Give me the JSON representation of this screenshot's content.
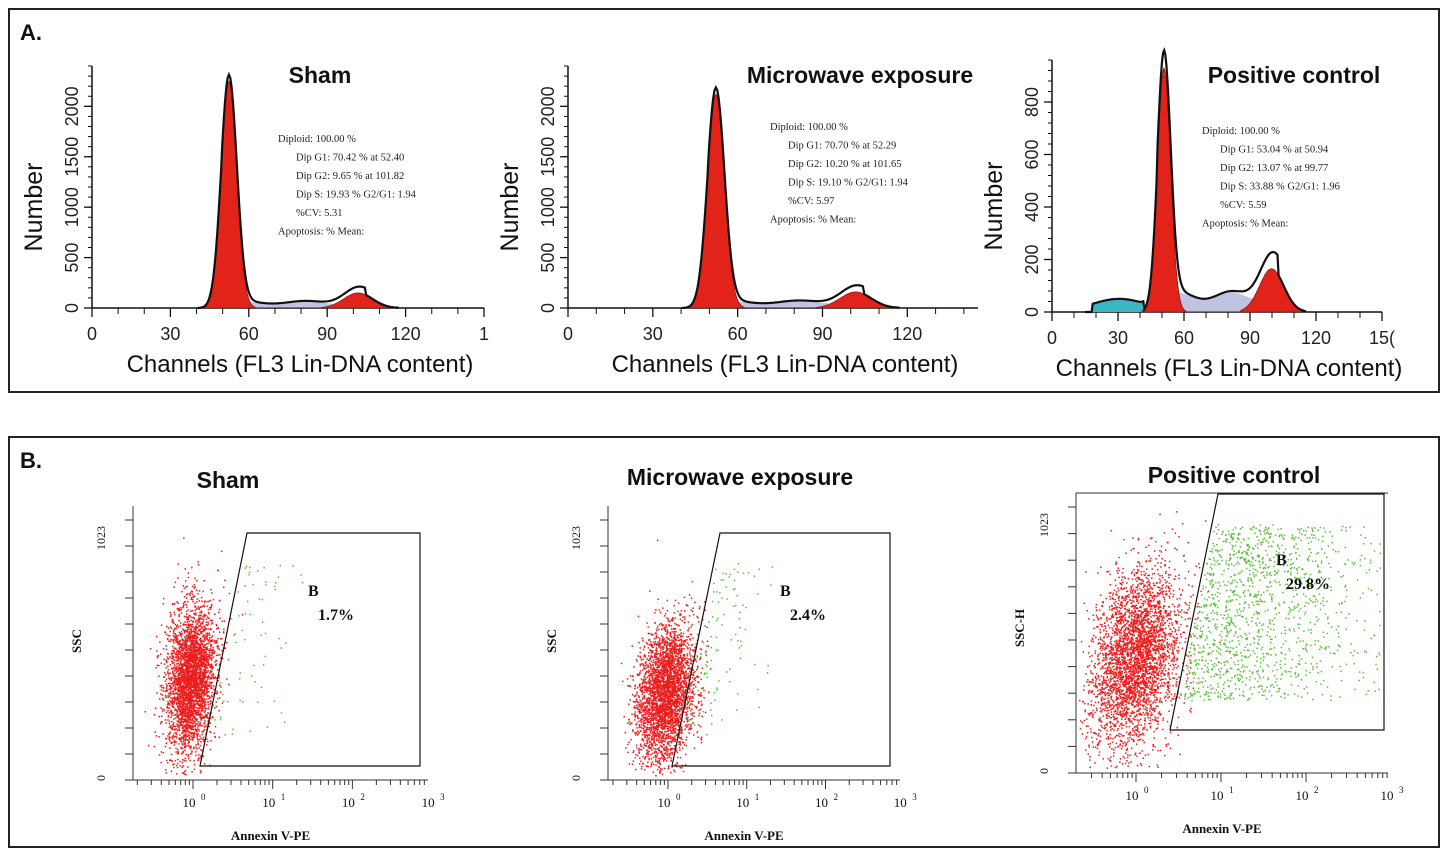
{
  "panel_a": {
    "label": "A.",
    "plots": [
      {
        "title": "Sham",
        "ylabel": "Number",
        "xlabel": "Channels (FL3 Lin-DNA content)",
        "yticks": [
          "0",
          "500",
          "1000",
          "1500",
          "2000"
        ],
        "xticks": [
          "0",
          "30",
          "60",
          "90",
          "120",
          "1"
        ],
        "stats": [
          "Diploid: 100.00 %",
          "Dip G1: 70.42 % at 52.40",
          "Dip G2: 9.65 % at 101.82",
          "Dip S: 19.93 %     G2/G1: 1.94",
          "%CV: 5.31",
          "Apoptosis:   %       Mean:"
        ]
      },
      {
        "title": "Microwave exposure",
        "ylabel": "Number",
        "xlabel": "Channels (FL3 Lin-DNA content)",
        "yticks": [
          "0",
          "500",
          "1000",
          "1500",
          "2000"
        ],
        "xticks": [
          "0",
          "30",
          "60",
          "90",
          "120"
        ],
        "stats": [
          "Diploid: 100.00 %",
          "Dip G1: 70.70 % at 52.29",
          "Dip G2: 10.20 % at 101.65",
          "Dip S: 19.10 %     G2/G1: 1.94",
          "%CV: 5.97",
          "Apoptosis:   %       Mean:"
        ]
      },
      {
        "title": "Positive control",
        "ylabel": "Number",
        "xlabel": "Channels (FL3 Lin-DNA content)",
        "yticks": [
          "0",
          "200",
          "400",
          "600",
          "800"
        ],
        "xticks": [
          "0",
          "30",
          "60",
          "90",
          "120",
          "15("
        ],
        "stats": [
          "Diploid: 100.00 %",
          "Dip G1: 53.04 % at 50.94",
          "Dip G2: 13.07 % at 99.77",
          "Dip S: 33.88 %     G2/G1: 1.96",
          "%CV: 5.59",
          "Apoptosis:   %       Mean:"
        ]
      }
    ]
  },
  "panel_b": {
    "label": "B.",
    "plots": [
      {
        "title": "Sham",
        "ylabel": "SSC",
        "xlabel": "Annexin V-PE",
        "ytop": "1023",
        "ybottom": "0",
        "gate_label": "B",
        "gate_pct": "1.7%"
      },
      {
        "title": "Microwave exposure",
        "ylabel": "SSC",
        "xlabel": "Annexin V-PE",
        "ytop": "1023",
        "ybottom": "0",
        "gate_label": "B",
        "gate_pct": "2.4%"
      },
      {
        "title": "Positive control",
        "ylabel": "SSC-H",
        "xlabel": "Annexin V-PE",
        "ytop": "1023",
        "ybottom": "0",
        "gate_label": "B",
        "gate_pct": "29.8%"
      }
    ]
  },
  "colors": {
    "g1_fill": "#e2231a",
    "g2_fill": "#e2231a",
    "s_phase": "#8f90c8",
    "apoptosis": "#3ab7c4",
    "outline": "#111111",
    "dot_red": "#ee1c1c",
    "dot_green": "#5cbf3a"
  },
  "chart_data": [
    {
      "type": "area",
      "title": "Sham",
      "xlabel": "Channels (FL3 Lin-DNA content)",
      "ylabel": "Number",
      "xlim": [
        0,
        150
      ],
      "ylim": [
        0,
        2400
      ],
      "peaks": {
        "g1_center": 52.4,
        "g1_height": 2250,
        "g2_center": 101.8,
        "g2_height": 150,
        "s_level": 80
      },
      "stats": {
        "diploid_pct": 100.0,
        "g1_pct": 70.42,
        "g1_at": 52.4,
        "g2_pct": 9.65,
        "g2_at": 101.82,
        "s_pct": 19.93,
        "g2_g1": 1.94,
        "cv": 5.31
      }
    },
    {
      "type": "area",
      "title": "Microwave exposure",
      "xlabel": "Channels (FL3 Lin-DNA content)",
      "ylabel": "Number",
      "xlim": [
        0,
        145
      ],
      "ylim": [
        0,
        2400
      ],
      "peaks": {
        "g1_center": 52.3,
        "g1_height": 2120,
        "g2_center": 101.7,
        "g2_height": 160,
        "s_level": 85
      },
      "stats": {
        "diploid_pct": 100.0,
        "g1_pct": 70.7,
        "g1_at": 52.29,
        "g2_pct": 10.2,
        "g2_at": 101.65,
        "s_pct": 19.1,
        "g2_g1": 1.94,
        "cv": 5.97
      }
    },
    {
      "type": "area",
      "title": "Positive control",
      "xlabel": "Channels (FL3 Lin-DNA content)",
      "ylabel": "Number",
      "xlim": [
        0,
        150
      ],
      "ylim": [
        0,
        960
      ],
      "peaks": {
        "g1_center": 50.9,
        "g1_height": 930,
        "g2_center": 99.8,
        "g2_height": 165,
        "s_level": 90
      },
      "stats": {
        "diploid_pct": 100.0,
        "g1_pct": 53.04,
        "g1_at": 50.94,
        "g2_pct": 13.07,
        "g2_at": 99.77,
        "s_pct": 33.88,
        "g2_g1": 1.96,
        "cv": 5.59
      }
    },
    {
      "type": "scatter",
      "title": "Sham",
      "xlabel": "Annexin V-PE",
      "ylabel": "SSC",
      "x_scale": "log",
      "xticks": [
        "10^0",
        "10^1",
        "10^2",
        "10^3"
      ],
      "ylim": [
        0,
        1023
      ],
      "gate": "B",
      "gate_pct": 1.7
    },
    {
      "type": "scatter",
      "title": "Microwave exposure",
      "xlabel": "Annexin V-PE",
      "ylabel": "SSC",
      "x_scale": "log",
      "xticks": [
        "10^0",
        "10^1",
        "10^2",
        "10^3"
      ],
      "ylim": [
        0,
        1023
      ],
      "gate": "B",
      "gate_pct": 2.4
    },
    {
      "type": "scatter",
      "title": "Positive control",
      "xlabel": "Annexin V-PE",
      "ylabel": "SSC-H",
      "x_scale": "log",
      "xticks": [
        "10^0",
        "10^1",
        "10^2",
        "10^3"
      ],
      "ylim": [
        0,
        1023
      ],
      "gate": "B",
      "gate_pct": 29.8
    }
  ]
}
